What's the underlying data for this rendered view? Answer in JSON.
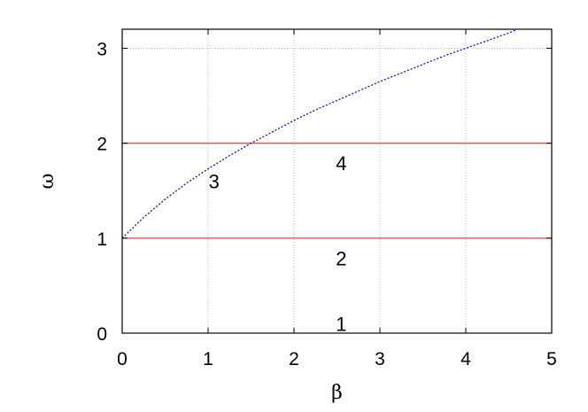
{
  "chart_data": {
    "type": "line",
    "xlabel": "β",
    "ylabel": "ω",
    "xlim": [
      0,
      5
    ],
    "ylim": [
      0,
      3.2
    ],
    "xticks": [
      "0",
      "1",
      "2",
      "3",
      "4",
      "5"
    ],
    "yticks": [
      "0",
      "1",
      "2",
      "3"
    ],
    "grid": true,
    "colors": {
      "horizontal": "#e05a5a",
      "curve": "#0000cc",
      "grid": "#aaaaaa"
    },
    "horizontal_lines": [
      1,
      2
    ],
    "series": [
      {
        "style": "dotted",
        "x": [
          0,
          0.25,
          0.5,
          0.75,
          1,
          1.25,
          1.5,
          1.75,
          2,
          2.25,
          2.5,
          2.75,
          3,
          3.25,
          3.5,
          3.75,
          4,
          4.25,
          4.5,
          4.6
        ],
        "y": [
          1.0,
          1.22,
          1.41,
          1.58,
          1.73,
          1.87,
          2.0,
          2.12,
          2.24,
          2.35,
          2.45,
          2.55,
          2.65,
          2.74,
          2.83,
          2.92,
          3.0,
          3.08,
          3.16,
          3.2
        ]
      }
    ],
    "annotations": [
      {
        "text": "1",
        "x": 2.55,
        "y": 0.1
      },
      {
        "text": "2",
        "x": 2.55,
        "y": 0.79
      },
      {
        "text": "3",
        "x": 1.07,
        "y": 1.6
      },
      {
        "text": "4",
        "x": 2.55,
        "y": 1.79
      }
    ]
  }
}
